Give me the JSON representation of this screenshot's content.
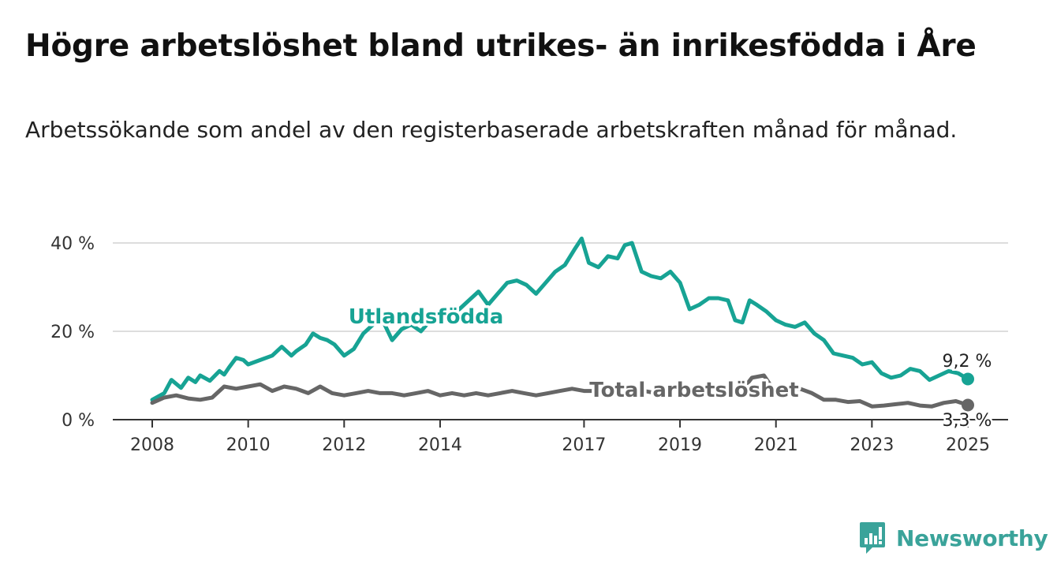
{
  "title": "Högre arbetslöshet bland utrikes- än inrikesfödda i Åre",
  "subtitle": "Arbetssökande som andel av den registerbaserade arbetskraften månad för månad.",
  "brand": {
    "name": "Newsworthy",
    "icon": "bar-chart-logo-icon",
    "color": "#3aa39a"
  },
  "chart_data": {
    "type": "line",
    "title": "Högre arbetslöshet bland utrikes- än inrikesfödda i Åre",
    "subtitle": "Arbetssökande som andel av den registerbaserade arbetskraften månad för månad.",
    "xlabel": "",
    "ylabel": "",
    "xlim": [
      2008,
      2025
    ],
    "ylim": [
      0,
      40
    ],
    "x_ticks": [
      {
        "value": 2008,
        "label": "2008"
      },
      {
        "value": 2010,
        "label": "2010"
      },
      {
        "value": 2012,
        "label": "2012"
      },
      {
        "value": 2014,
        "label": "2014"
      },
      {
        "value": 2017,
        "label": "2017"
      },
      {
        "value": 2019,
        "label": "2019"
      },
      {
        "value": 2021,
        "label": "2021"
      },
      {
        "value": 2023,
        "label": "2023"
      },
      {
        "value": 2025,
        "label": "2025"
      }
    ],
    "y_ticks": [
      {
        "value": 0,
        "label": "0 %"
      },
      {
        "value": 20,
        "label": "20 %"
      },
      {
        "value": 40,
        "label": "40 %"
      }
    ],
    "grid": true,
    "series": [
      {
        "name": "Utlandsfödda",
        "color": "#17a394",
        "end_label": "9,2 %",
        "x": [
          2008.0,
          2008.25,
          2008.4,
          2008.6,
          2008.75,
          2008.9,
          2009.0,
          2009.2,
          2009.4,
          2009.5,
          2009.6,
          2009.75,
          2009.9,
          2010.0,
          2010.25,
          2010.5,
          2010.7,
          2010.9,
          2011.0,
          2011.2,
          2011.35,
          2011.5,
          2011.65,
          2011.8,
          2012.0,
          2012.2,
          2012.4,
          2012.6,
          2012.8,
          2013.0,
          2013.2,
          2013.4,
          2013.6,
          2013.8,
          2014.0,
          2014.2,
          2014.4,
          2014.6,
          2014.8,
          2015.0,
          2015.2,
          2015.4,
          2015.6,
          2015.8,
          2016.0,
          2016.2,
          2016.4,
          2016.6,
          2016.8,
          2016.95,
          2017.1,
          2017.3,
          2017.5,
          2017.7,
          2017.85,
          2018.0,
          2018.2,
          2018.4,
          2018.6,
          2018.8,
          2019.0,
          2019.2,
          2019.4,
          2019.6,
          2019.8,
          2020.0,
          2020.15,
          2020.3,
          2020.45,
          2020.6,
          2020.8,
          2021.0,
          2021.2,
          2021.4,
          2021.6,
          2021.8,
          2022.0,
          2022.2,
          2022.4,
          2022.6,
          2022.8,
          2023.0,
          2023.2,
          2023.4,
          2023.6,
          2023.8,
          2024.0,
          2024.2,
          2024.4,
          2024.6,
          2024.8,
          2025.0
        ],
        "y": [
          4.5,
          6.0,
          9.0,
          7.2,
          9.5,
          8.5,
          10.0,
          8.8,
          11.0,
          10.2,
          11.8,
          14.0,
          13.5,
          12.5,
          13.5,
          14.5,
          16.5,
          14.5,
          15.5,
          17.0,
          19.5,
          18.5,
          18.0,
          17.0,
          14.5,
          16.0,
          19.5,
          21.5,
          22.5,
          18.0,
          20.5,
          21.5,
          20.0,
          22.5,
          23.5,
          24.0,
          25.0,
          27.0,
          29.0,
          26.0,
          28.5,
          31.0,
          31.5,
          30.5,
          28.5,
          31.0,
          33.5,
          35.0,
          38.5,
          41.0,
          35.5,
          34.5,
          37.0,
          36.5,
          39.5,
          40.0,
          33.5,
          32.5,
          32.0,
          33.5,
          31.0,
          25.0,
          26.0,
          27.5,
          27.5,
          27.0,
          22.5,
          22.0,
          27.0,
          26.0,
          24.5,
          22.5,
          21.5,
          21.0,
          22.0,
          19.5,
          18.0,
          15.0,
          14.5,
          14.0,
          12.5,
          13.0,
          10.5,
          9.5,
          10.0,
          11.5,
          11.0,
          9.0,
          10.0,
          11.0,
          10.5,
          9.2
        ]
      },
      {
        "name": "Total arbetslöshet",
        "color": "#666666",
        "end_label": "3,3 %",
        "x": [
          2008.0,
          2008.25,
          2008.5,
          2008.75,
          2009.0,
          2009.25,
          2009.5,
          2009.75,
          2010.0,
          2010.25,
          2010.5,
          2010.75,
          2011.0,
          2011.25,
          2011.5,
          2011.75,
          2012.0,
          2012.25,
          2012.5,
          2012.75,
          2013.0,
          2013.25,
          2013.5,
          2013.75,
          2014.0,
          2014.25,
          2014.5,
          2014.75,
          2015.0,
          2015.25,
          2015.5,
          2015.75,
          2016.0,
          2016.25,
          2016.5,
          2016.75,
          2017.0,
          2017.25,
          2017.5,
          2017.75,
          2018.0,
          2018.25,
          2018.5,
          2018.75,
          2019.0,
          2019.25,
          2019.5,
          2019.75,
          2020.0,
          2020.25,
          2020.5,
          2020.75,
          2021.0,
          2021.25,
          2021.5,
          2021.75,
          2022.0,
          2022.25,
          2022.5,
          2022.75,
          2023.0,
          2023.25,
          2023.5,
          2023.75,
          2024.0,
          2024.25,
          2024.5,
          2024.75,
          2025.0
        ],
        "y": [
          3.8,
          5.0,
          5.5,
          4.8,
          4.5,
          5.0,
          7.5,
          7.0,
          7.5,
          8.0,
          6.5,
          7.5,
          7.0,
          6.0,
          7.5,
          6.0,
          5.5,
          6.0,
          6.5,
          6.0,
          6.0,
          5.5,
          6.0,
          6.5,
          5.5,
          6.0,
          5.5,
          6.0,
          5.5,
          6.0,
          6.5,
          6.0,
          5.5,
          6.0,
          6.5,
          7.0,
          6.5,
          6.5,
          6.0,
          6.5,
          7.0,
          6.5,
          6.0,
          7.0,
          7.0,
          6.0,
          6.5,
          7.0,
          5.5,
          6.0,
          9.5,
          10.0,
          6.0,
          6.5,
          7.0,
          6.0,
          4.5,
          4.5,
          4.0,
          4.2,
          3.0,
          3.2,
          3.5,
          3.8,
          3.2,
          3.0,
          3.8,
          4.2,
          3.3
        ]
      }
    ],
    "annotations": [
      {
        "text": "Utlandsfödda",
        "series": "Utlandsfödda"
      },
      {
        "text": "Total arbetslöshet",
        "series": "Total arbetslöshet"
      }
    ]
  }
}
